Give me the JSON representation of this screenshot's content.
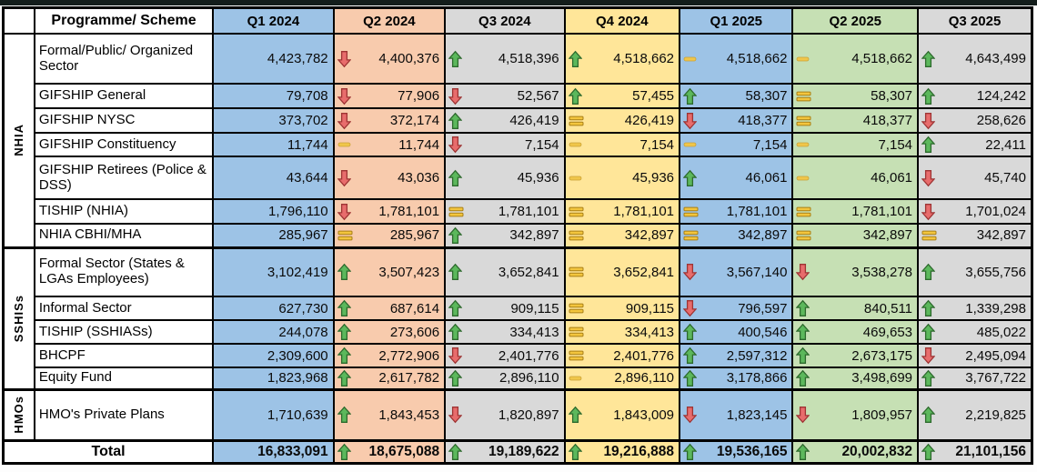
{
  "table": {
    "corner_label": "",
    "programme_header": "Programme/ Scheme",
    "quarters": [
      {
        "label": "Q1 2024",
        "color": "#9DC3E6"
      },
      {
        "label": "Q2 2024",
        "color": "#F8CBAD"
      },
      {
        "label": "Q3 2024",
        "color": "#D9D9D9"
      },
      {
        "label": "Q4 2024",
        "color": "#FFE699"
      },
      {
        "label": "Q1 2025",
        "color": "#9DC3E6"
      },
      {
        "label": "Q2 2025",
        "color": "#C6E0B4"
      },
      {
        "label": "Q3 2025",
        "color": "#D9D9D9"
      }
    ],
    "groups": [
      {
        "label": "NHIA",
        "span": 7
      },
      {
        "label": "SSHISs",
        "span": 5
      },
      {
        "label": "HMOs",
        "span": 1
      }
    ],
    "rows": [
      {
        "name": "Formal/Public/ Organized Sector",
        "cells": [
          {
            "icon": "none",
            "value": "4,423,782"
          },
          {
            "icon": "down",
            "value": "4,400,376"
          },
          {
            "icon": "up",
            "value": "4,518,396"
          },
          {
            "icon": "up",
            "value": "4,518,662"
          },
          {
            "icon": "dash",
            "value": "4,518,662"
          },
          {
            "icon": "dash",
            "value": "4,518,662"
          },
          {
            "icon": "up",
            "value": "4,643,499"
          }
        ]
      },
      {
        "name": "GIFSHIP General",
        "cells": [
          {
            "icon": "none",
            "value": "79,708"
          },
          {
            "icon": "down",
            "value": "77,906"
          },
          {
            "icon": "down",
            "value": "52,567"
          },
          {
            "icon": "up",
            "value": "57,455"
          },
          {
            "icon": "up",
            "value": "58,307"
          },
          {
            "icon": "eq",
            "value": "58,307"
          },
          {
            "icon": "up",
            "value": "124,242"
          }
        ]
      },
      {
        "name": "GIFSHIP NYSC",
        "cells": [
          {
            "icon": "none",
            "value": "373,702"
          },
          {
            "icon": "down",
            "value": "372,174"
          },
          {
            "icon": "up",
            "value": "426,419"
          },
          {
            "icon": "eq",
            "value": "426,419"
          },
          {
            "icon": "down",
            "value": "418,377"
          },
          {
            "icon": "eq",
            "value": "418,377"
          },
          {
            "icon": "down",
            "value": "258,626"
          }
        ]
      },
      {
        "name": "GIFSHIP Constituency",
        "cells": [
          {
            "icon": "none",
            "value": "11,744"
          },
          {
            "icon": "dash",
            "value": "11,744"
          },
          {
            "icon": "down",
            "value": "7,154"
          },
          {
            "icon": "dash",
            "value": "7,154"
          },
          {
            "icon": "dash",
            "value": "7,154"
          },
          {
            "icon": "dash",
            "value": "7,154"
          },
          {
            "icon": "up",
            "value": "22,411"
          }
        ]
      },
      {
        "name": "GIFSHIP Retirees (Police & DSS)",
        "cells": [
          {
            "icon": "none",
            "value": "43,644"
          },
          {
            "icon": "down",
            "value": "43,036"
          },
          {
            "icon": "up",
            "value": "45,936"
          },
          {
            "icon": "dash",
            "value": "45,936"
          },
          {
            "icon": "up",
            "value": "46,061"
          },
          {
            "icon": "dash",
            "value": "46,061"
          },
          {
            "icon": "down",
            "value": "45,740"
          }
        ]
      },
      {
        "name": "TISHIP (NHIA)",
        "cells": [
          {
            "icon": "none",
            "value": "1,796,110"
          },
          {
            "icon": "down",
            "value": "1,781,101"
          },
          {
            "icon": "eq",
            "value": "1,781,101"
          },
          {
            "icon": "eq",
            "value": "1,781,101"
          },
          {
            "icon": "eq",
            "value": "1,781,101"
          },
          {
            "icon": "eq",
            "value": "1,781,101"
          },
          {
            "icon": "down",
            "value": "1,701,024"
          }
        ]
      },
      {
        "name": "NHIA CBHI/MHA",
        "cells": [
          {
            "icon": "none",
            "value": "285,967"
          },
          {
            "icon": "eq",
            "value": "285,967"
          },
          {
            "icon": "up",
            "value": "342,897"
          },
          {
            "icon": "eq",
            "value": "342,897"
          },
          {
            "icon": "eq",
            "value": "342,897"
          },
          {
            "icon": "eq",
            "value": "342,897"
          },
          {
            "icon": "eq",
            "value": "342,897"
          }
        ]
      },
      {
        "name": "Formal Sector (States & LGAs Employees)",
        "cells": [
          {
            "icon": "none",
            "value": "3,102,419"
          },
          {
            "icon": "up",
            "value": "3,507,423"
          },
          {
            "icon": "up",
            "value": "3,652,841"
          },
          {
            "icon": "eq",
            "value": "3,652,841"
          },
          {
            "icon": "down",
            "value": "3,567,140"
          },
          {
            "icon": "down",
            "value": "3,538,278"
          },
          {
            "icon": "up",
            "value": "3,655,756"
          }
        ]
      },
      {
        "name": "Informal Sector",
        "cells": [
          {
            "icon": "none",
            "value": "627,730"
          },
          {
            "icon": "up",
            "value": "687,614"
          },
          {
            "icon": "up",
            "value": "909,115"
          },
          {
            "icon": "eq",
            "value": "909,115"
          },
          {
            "icon": "down",
            "value": "796,597"
          },
          {
            "icon": "up",
            "value": "840,511"
          },
          {
            "icon": "up",
            "value": "1,339,298"
          }
        ]
      },
      {
        "name": "TISHIP (SSHIASs)",
        "cells": [
          {
            "icon": "none",
            "value": "244,078"
          },
          {
            "icon": "up",
            "value": "273,606"
          },
          {
            "icon": "up",
            "value": "334,413"
          },
          {
            "icon": "eq",
            "value": "334,413"
          },
          {
            "icon": "up",
            "value": "400,546"
          },
          {
            "icon": "up",
            "value": "469,653"
          },
          {
            "icon": "up",
            "value": "485,022"
          }
        ]
      },
      {
        "name": "BHCPF",
        "cells": [
          {
            "icon": "none",
            "value": "2,309,600"
          },
          {
            "icon": "up",
            "value": "2,772,906"
          },
          {
            "icon": "down",
            "value": "2,401,776"
          },
          {
            "icon": "eq",
            "value": "2,401,776"
          },
          {
            "icon": "up",
            "value": "2,597,312"
          },
          {
            "icon": "up",
            "value": "2,673,175"
          },
          {
            "icon": "down",
            "value": "2,495,094"
          }
        ]
      },
      {
        "name": "Equity Fund",
        "cells": [
          {
            "icon": "none",
            "value": "1,823,968"
          },
          {
            "icon": "up",
            "value": "2,617,782"
          },
          {
            "icon": "up",
            "value": "2,896,110"
          },
          {
            "icon": "dash",
            "value": "2,896,110"
          },
          {
            "icon": "up",
            "value": "3,178,866"
          },
          {
            "icon": "up",
            "value": "3,498,699"
          },
          {
            "icon": "up",
            "value": "3,767,722"
          }
        ]
      },
      {
        "name": "HMO's Private Plans",
        "cells": [
          {
            "icon": "none",
            "value": "1,710,639"
          },
          {
            "icon": "up",
            "value": "1,843,453"
          },
          {
            "icon": "down",
            "value": "1,820,897"
          },
          {
            "icon": "up",
            "value": "1,843,009"
          },
          {
            "icon": "down",
            "value": "1,823,145"
          },
          {
            "icon": "down",
            "value": "1,809,957"
          },
          {
            "icon": "up",
            "value": "2,219,825"
          }
        ]
      }
    ],
    "total": {
      "label": "Total",
      "cells": [
        {
          "icon": "none",
          "value": "16,833,091"
        },
        {
          "icon": "up",
          "value": "18,675,088"
        },
        {
          "icon": "up",
          "value": "19,189,622"
        },
        {
          "icon": "up",
          "value": "19,216,888"
        },
        {
          "icon": "up",
          "value": "19,536,165"
        },
        {
          "icon": "up",
          "value": "20,002,832"
        },
        {
          "icon": "up",
          "value": "21,101,156"
        }
      ]
    }
  },
  "icon_colors": {
    "up_fill": "#5CB85C",
    "up_stroke": "#2D6A2D",
    "down_fill": "#E86C6C",
    "down_stroke": "#9E3434",
    "eq_fill": "#F3C53D",
    "eq_stroke": "#A87F17",
    "dash_fill": "#F0C64A",
    "dash_stroke": "#C9A238"
  }
}
